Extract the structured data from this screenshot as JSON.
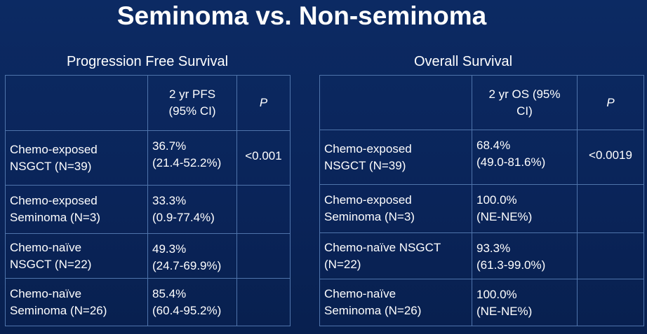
{
  "title": "Seminoma vs. Non-seminoma",
  "tables": [
    {
      "caption": "Progression Free Survival",
      "header": {
        "estimate": [
          "2 yr PFS",
          "(95% CI)"
        ],
        "p": "P"
      },
      "rows": [
        {
          "label": [
            "Chemo-exposed",
            "NSGCT (N=39)"
          ],
          "estimate": "36.7%",
          "ci": "(21.4-52.2%)",
          "p": "<0.001"
        },
        {
          "label": [
            "Chemo-exposed",
            "Seminoma (N=3)"
          ],
          "estimate": "33.3%",
          "ci": "(0.9-77.4%)"
        },
        {
          "label": [
            "Chemo-naïve",
            "NSGCT (N=22)"
          ],
          "estimate": "49.3%",
          "ci": "(24.7-69.9%)"
        },
        {
          "label": [
            "Chemo-naïve",
            "Seminoma (N=26)"
          ],
          "estimate": "85.4%",
          "ci": "(60.4-95.2%)"
        }
      ]
    },
    {
      "caption": "Overall Survival",
      "header": {
        "estimate": [
          "2 yr OS (95%",
          "CI)"
        ],
        "p": "P"
      },
      "rows": [
        {
          "label": [
            "Chemo-exposed",
            "NSGCT (N=39)"
          ],
          "estimate": "68.4%",
          "ci": "(49.0-81.6%)",
          "p": "<0.0019"
        },
        {
          "label": [
            "Chemo-exposed",
            "Seminoma (N=3)"
          ],
          "estimate": "100.0%",
          "ci": "(NE-NE%)"
        },
        {
          "label": [
            "Chemo-naïve NSGCT",
            "(N=22)"
          ],
          "estimate": "93.3%",
          "ci": "(61.3-99.0%)"
        },
        {
          "label": [
            "Chemo-naïve",
            "Seminoma (N=26)"
          ],
          "estimate": "100.0%",
          "ci": "(NE-NE%)"
        }
      ]
    }
  ]
}
